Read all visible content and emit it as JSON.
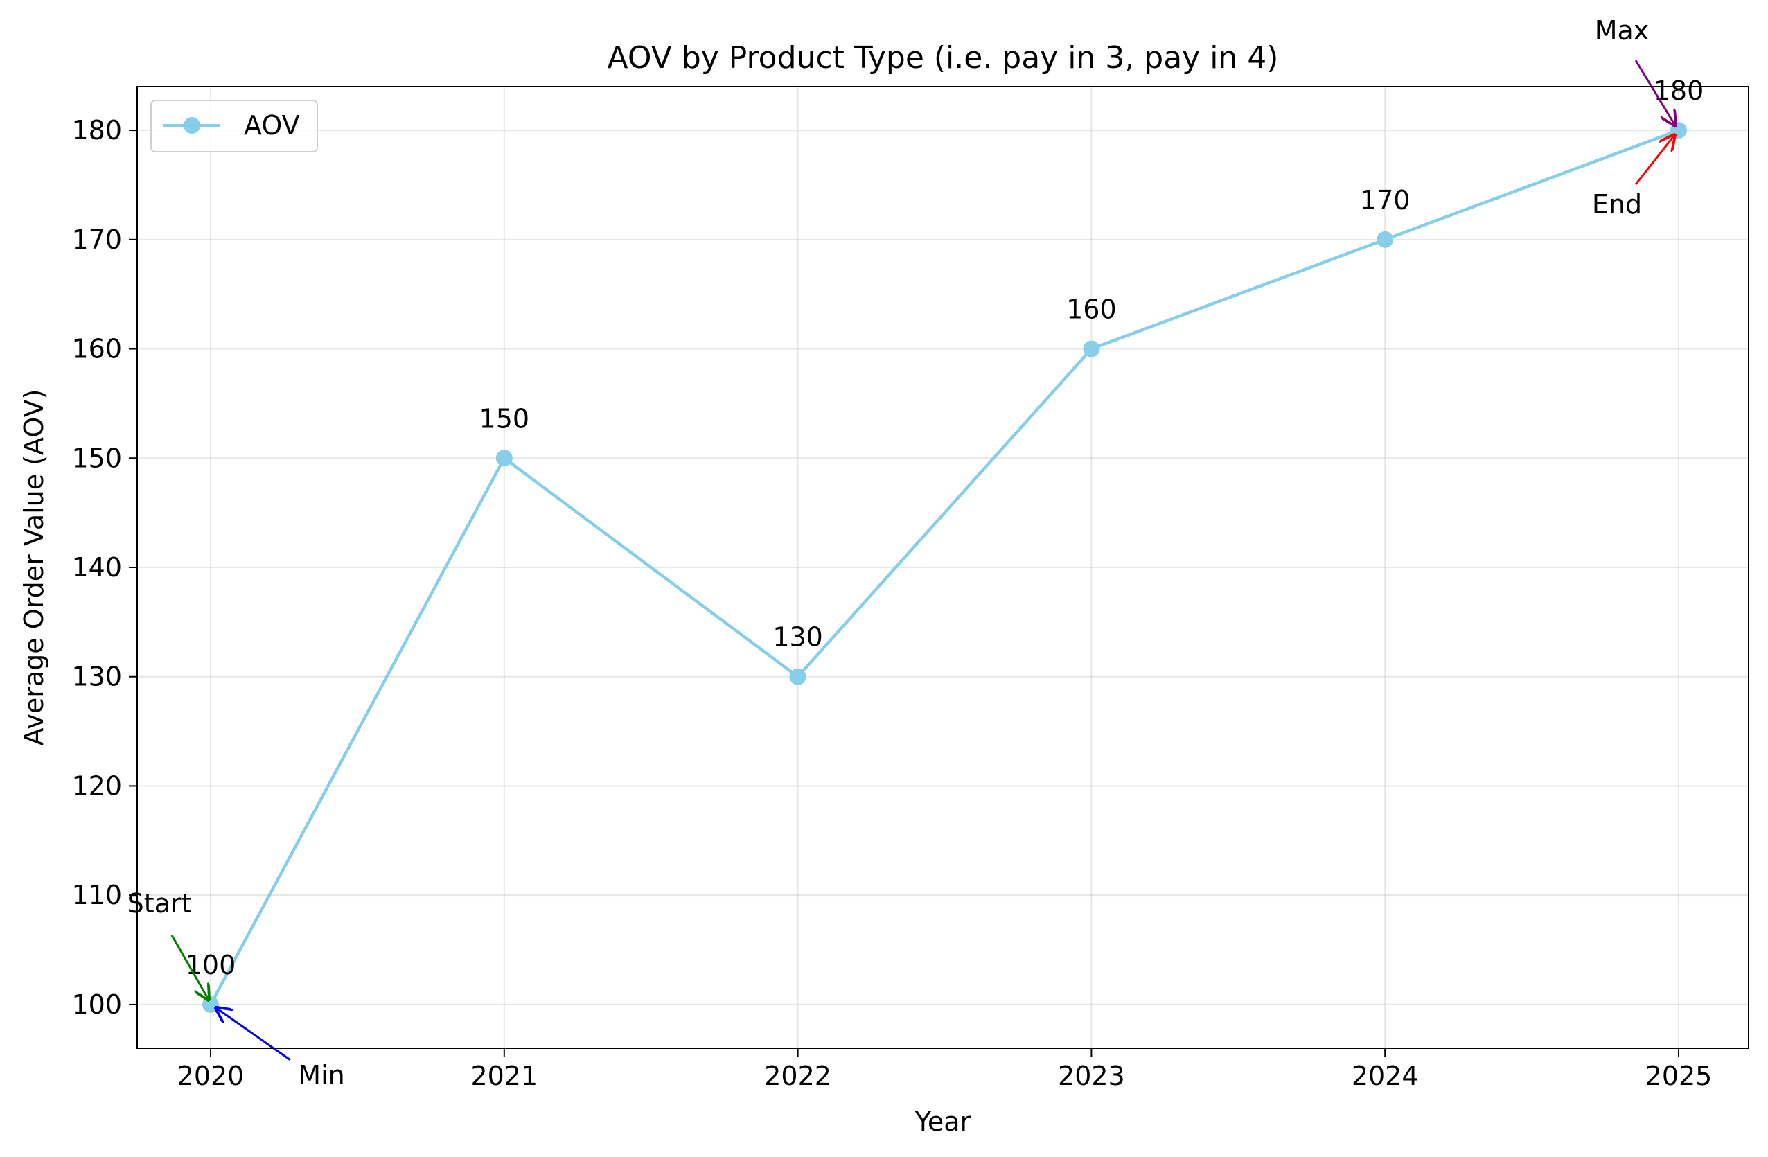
{
  "chart_data": {
    "type": "line",
    "title": "AOV by Product Type (i.e. pay in 3, pay in 4)",
    "xlabel": "Year",
    "ylabel": "Average Order Value (AOV)",
    "x": [
      "2020",
      "2021",
      "2022",
      "2023",
      "2024",
      "2025"
    ],
    "series": [
      {
        "name": "AOV",
        "values": [
          100,
          150,
          130,
          160,
          170,
          180
        ],
        "color": "#87ceeb"
      }
    ],
    "data_labels": [
      "100",
      "150",
      "130",
      "160",
      "170",
      "180"
    ],
    "ylim": [
      96,
      184
    ],
    "yticks": [
      100,
      110,
      120,
      130,
      140,
      150,
      160,
      170,
      180
    ],
    "grid": true,
    "legend": {
      "placement": "top-left",
      "entries": [
        "AOV"
      ]
    },
    "annotations": [
      {
        "text": "Start",
        "target_x": "2020",
        "target_y": 100,
        "color": "#008000"
      },
      {
        "text": "Min",
        "target_x": "2020",
        "target_y": 100,
        "color": "#0000ff"
      },
      {
        "text": "Max",
        "target_x": "2025",
        "target_y": 180,
        "color": "#800080"
      },
      {
        "text": "End",
        "target_x": "2025",
        "target_y": 180,
        "color": "#ff0000"
      }
    ]
  }
}
